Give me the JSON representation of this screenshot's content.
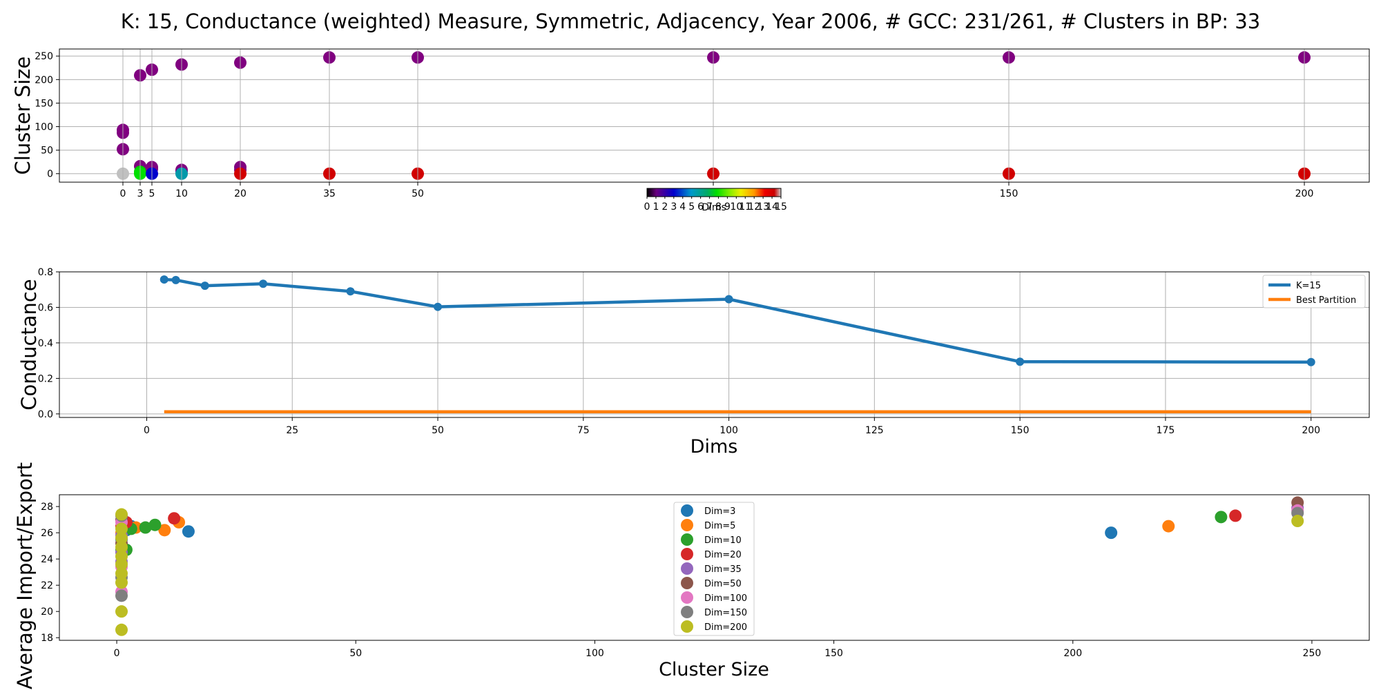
{
  "figure": {
    "title": "K: 15, Conductance (weighted) Measure, Symmetric, Adjacency, Year 2006, # GCC: 231/261, # Clusters in BP: 33"
  },
  "colors": {
    "k15": "#1f77b4",
    "best_partition": "#ff7f0e",
    "grid": "#b0b0b0",
    "purple": "#800080",
    "red": "#d10000",
    "gray": "#c0c0c0"
  },
  "chart_data": [
    {
      "type": "scatter",
      "ylabel": "Cluster Size",
      "xticks": [
        0,
        3,
        5,
        10,
        20,
        35,
        50,
        100,
        150,
        200
      ],
      "xtick_labels": [
        "0",
        "3",
        "5",
        "10",
        "20",
        "35",
        "50",
        "",
        "150",
        "200"
      ],
      "ylim": [
        -18,
        265
      ],
      "yticks": [
        0,
        50,
        100,
        150,
        200,
        250
      ],
      "grid": true,
      "colorbar": {
        "label": "Dims",
        "tick_labels": [
          "0",
          "1",
          "2",
          "3",
          "4",
          "5",
          "6",
          "7",
          "8",
          "9",
          "10",
          "11",
          "12",
          "13",
          "14",
          "15"
        ]
      },
      "points": [
        {
          "x": 0,
          "y": 93,
          "color": "#800080"
        },
        {
          "x": 0,
          "y": 87,
          "color": "#800080"
        },
        {
          "x": 0,
          "y": 52,
          "color": "#800080"
        },
        {
          "x": 0,
          "y": 0,
          "color": "#c0c0c0"
        },
        {
          "x": 3,
          "y": 209,
          "color": "#800080"
        },
        {
          "x": 3,
          "y": 16,
          "color": "#800080"
        },
        {
          "x": 3,
          "y": 4,
          "color": "#00cc00"
        },
        {
          "x": 3,
          "y": 0,
          "color": "#00e000"
        },
        {
          "x": 5,
          "y": 221,
          "color": "#800080"
        },
        {
          "x": 5,
          "y": 14,
          "color": "#800080"
        },
        {
          "x": 5,
          "y": 10,
          "color": "#800080"
        },
        {
          "x": 5,
          "y": 0,
          "color": "#0000cc"
        },
        {
          "x": 10,
          "y": 232,
          "color": "#800080"
        },
        {
          "x": 10,
          "y": 8,
          "color": "#800080"
        },
        {
          "x": 10,
          "y": 5,
          "color": "#800080"
        },
        {
          "x": 10,
          "y": 0,
          "color": "#0099aa"
        },
        {
          "x": 20,
          "y": 236,
          "color": "#800080"
        },
        {
          "x": 20,
          "y": 14,
          "color": "#800080"
        },
        {
          "x": 20,
          "y": 8,
          "color": "#800080"
        },
        {
          "x": 20,
          "y": 0,
          "color": "#d10000"
        },
        {
          "x": 35,
          "y": 247,
          "color": "#800080"
        },
        {
          "x": 35,
          "y": 0,
          "color": "#d10000"
        },
        {
          "x": 50,
          "y": 247,
          "color": "#800080"
        },
        {
          "x": 50,
          "y": 0,
          "color": "#d10000"
        },
        {
          "x": 100,
          "y": 247,
          "color": "#800080"
        },
        {
          "x": 100,
          "y": 0,
          "color": "#d10000"
        },
        {
          "x": 150,
          "y": 247,
          "color": "#800080"
        },
        {
          "x": 150,
          "y": 0,
          "color": "#d10000"
        },
        {
          "x": 200,
          "y": 247,
          "color": "#800080"
        },
        {
          "x": 200,
          "y": 0,
          "color": "#d10000"
        }
      ]
    },
    {
      "type": "line",
      "xlabel": "Dims",
      "ylabel": "Conductance",
      "xlim": [
        -15,
        210
      ],
      "ylim": [
        -0.02,
        0.8
      ],
      "xticks": [
        0,
        25,
        50,
        75,
        100,
        125,
        150,
        175,
        200
      ],
      "yticks": [
        0.0,
        0.2,
        0.4,
        0.6,
        0.8
      ],
      "ytick_labels": [
        "0.0",
        "0.2",
        "0.4",
        "0.6",
        "0.8"
      ],
      "grid": true,
      "legend_position": "top-right",
      "series": [
        {
          "name": "K=15",
          "color": "#1f77b4",
          "markers": true,
          "x": [
            3,
            5,
            10,
            20,
            35,
            50,
            100,
            150,
            200
          ],
          "y": [
            0.757,
            0.754,
            0.722,
            0.733,
            0.69,
            0.603,
            0.646,
            0.294,
            0.292
          ]
        },
        {
          "name": "Best Partition",
          "color": "#ff7f0e",
          "markers": false,
          "x": [
            3,
            200
          ],
          "y": [
            0.012,
            0.012
          ]
        }
      ]
    },
    {
      "type": "scatter",
      "xlabel": "Cluster Size",
      "ylabel": "Average Import/Export",
      "xlim": [
        -12,
        262
      ],
      "ylim": [
        17.8,
        28.9
      ],
      "xticks": [
        0,
        50,
        100,
        150,
        200,
        250
      ],
      "yticks": [
        18,
        20,
        22,
        24,
        26,
        28
      ],
      "grid": false,
      "legend_position": "upper-center",
      "series": [
        {
          "name": "Dim=3",
          "color": "#1f77b4",
          "points": [
            [
              1,
              25.5
            ],
            [
              2,
              26.2
            ],
            [
              3,
              26.5
            ],
            [
              15,
              26.1
            ],
            [
              208,
              26.0
            ]
          ]
        },
        {
          "name": "Dim=5",
          "color": "#ff7f0e",
          "points": [
            [
              1,
              26.0
            ],
            [
              4,
              26.4
            ],
            [
              10,
              26.2
            ],
            [
              13,
              26.8
            ],
            [
              220,
              26.5
            ]
          ]
        },
        {
          "name": "Dim=10",
          "color": "#2ca02c",
          "points": [
            [
              1,
              24.7
            ],
            [
              2,
              24.7
            ],
            [
              3,
              26.3
            ],
            [
              6,
              26.4
            ],
            [
              8,
              26.6
            ],
            [
              231,
              27.2
            ]
          ]
        },
        {
          "name": "Dim=20",
          "color": "#d62728",
          "points": [
            [
              1,
              26.5
            ],
            [
              2,
              26.8
            ],
            [
              12,
              27.1
            ],
            [
              234,
              27.3
            ]
          ]
        },
        {
          "name": "Dim=35",
          "color": "#9467bd",
          "points": [
            [
              1,
              23.8
            ],
            [
              1,
              24.5
            ],
            [
              1,
              25.8
            ],
            [
              247,
              27.9
            ]
          ]
        },
        {
          "name": "Dim=50",
          "color": "#8c564b",
          "points": [
            [
              1,
              27.0
            ],
            [
              1,
              25.2
            ],
            [
              247,
              28.3
            ]
          ]
        },
        {
          "name": "Dim=100",
          "color": "#e377c2",
          "points": [
            [
              1,
              21.5
            ],
            [
              1,
              23.4
            ],
            [
              1,
              26.8
            ],
            [
              247,
              27.7
            ]
          ]
        },
        {
          "name": "Dim=150",
          "color": "#7f7f7f",
          "points": [
            [
              1,
              21.2
            ],
            [
              1,
              22.6
            ],
            [
              1,
              27.3
            ],
            [
              247,
              27.5
            ]
          ]
        },
        {
          "name": "Dim=200",
          "color": "#bcbd22",
          "points": [
            [
              1,
              18.6
            ],
            [
              1,
              20.0
            ],
            [
              1,
              22.2
            ],
            [
              1,
              22.9
            ],
            [
              1,
              23.6
            ],
            [
              1,
              24.2
            ],
            [
              1,
              24.9
            ],
            [
              1,
              25.6
            ],
            [
              1,
              26.3
            ],
            [
              1,
              27.4
            ],
            [
              247,
              26.9
            ]
          ]
        }
      ]
    }
  ]
}
